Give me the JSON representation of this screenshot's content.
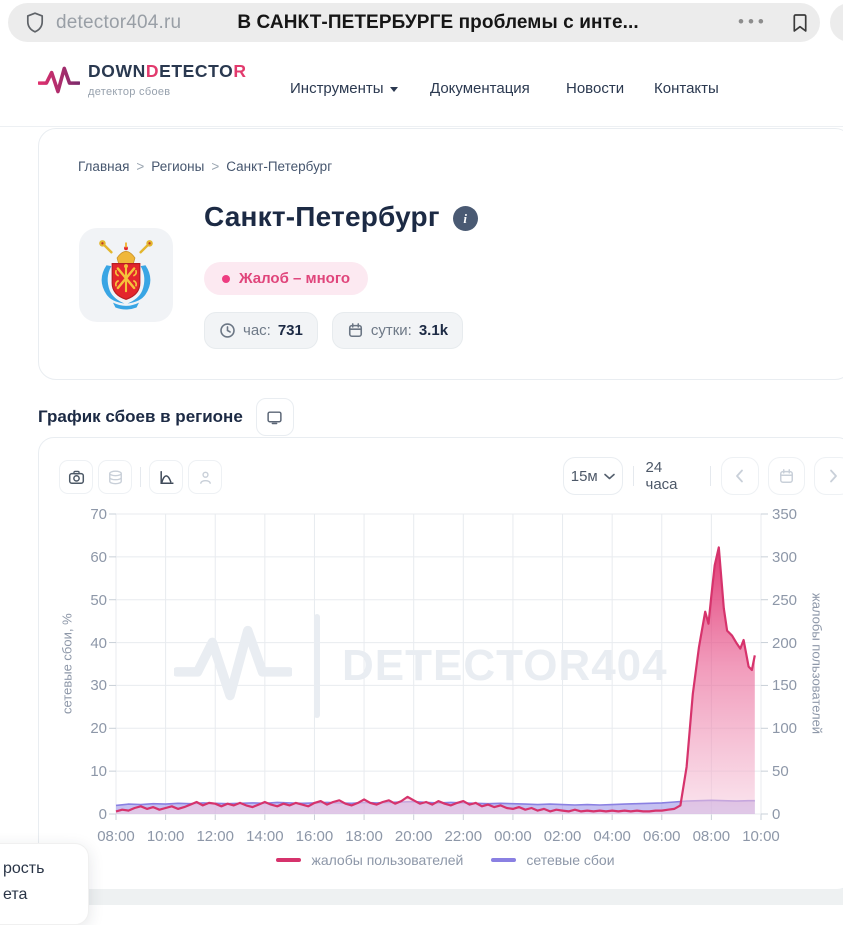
{
  "browser": {
    "url": "detector404.ru",
    "tab_title": "В САНКТ-ПЕТЕРБУРГЕ проблемы с инте...",
    "more_menu": "•••"
  },
  "header": {
    "logo": {
      "parts": [
        {
          "t": "DOWN",
          "c": "navy"
        },
        {
          "t": "D",
          "c": "pink"
        },
        {
          "t": "ETECTO",
          "c": "navy"
        },
        {
          "t": "R",
          "c": "pink"
        }
      ],
      "subtitle": "детектор сбоев"
    },
    "nav": [
      {
        "label": "Инструменты",
        "has_dropdown": true
      },
      {
        "label": "Документация",
        "has_dropdown": false
      },
      {
        "label": "Новости",
        "has_dropdown": false
      },
      {
        "label": "Контакты",
        "has_dropdown": false
      }
    ]
  },
  "breadcrumb": {
    "items": [
      "Главная",
      "Регионы",
      "Санкт-Петербург"
    ],
    "separator": ">"
  },
  "region": {
    "title": "Санкт-Петербург",
    "info_glyph": "i",
    "status_badge": "Жалоб – много",
    "stats": [
      {
        "icon": "clock-icon",
        "label": "час:",
        "value": "731"
      },
      {
        "icon": "calendar-icon",
        "label": "сутки:",
        "value": "3.1k"
      }
    ]
  },
  "chart_section": {
    "heading": "График сбоев в регионе",
    "toolbar": {
      "interval_select": "15м",
      "range_label": "24 часа"
    }
  },
  "colors": {
    "brand_navy": "#2a3950",
    "brand_pink": "#e23a6d",
    "status_pink": "#e0457b",
    "complaints_line": "#d6336c",
    "network_line": "#8a80e2"
  },
  "corner_popup": {
    "line1": "рость",
    "line2": "ета"
  },
  "chart_data": {
    "type": "area",
    "title": "График сбоев в регионе",
    "x_ticks": [
      "08:00",
      "10:00",
      "12:00",
      "14:00",
      "16:00",
      "18:00",
      "20:00",
      "22:00",
      "00:00",
      "02:00",
      "04:00",
      "06:00",
      "08:00",
      "10:00"
    ],
    "x_max_minutes": 1560,
    "left_axis": {
      "label": "сетевые сбои, %",
      "min": 0,
      "max": 70,
      "step": 10
    },
    "right_axis": {
      "label": "жалобы пользователей",
      "min": 0,
      "max": 350,
      "step": 50
    },
    "grid": true,
    "legend_position": "bottom",
    "watermark": "DETECTOR404",
    "series": [
      {
        "name": "жалобы пользователей",
        "axis": "right",
        "color": "#d6336c",
        "fill": "gradient-pink",
        "z": 1,
        "points": [
          [
            0,
            3
          ],
          [
            15,
            5
          ],
          [
            30,
            4
          ],
          [
            45,
            7
          ],
          [
            60,
            9
          ],
          [
            75,
            6
          ],
          [
            90,
            8
          ],
          [
            105,
            5
          ],
          [
            120,
            7
          ],
          [
            135,
            9
          ],
          [
            150,
            6
          ],
          [
            165,
            8
          ],
          [
            180,
            11
          ],
          [
            195,
            14
          ],
          [
            210,
            10
          ],
          [
            225,
            13
          ],
          [
            240,
            12
          ],
          [
            255,
            9
          ],
          [
            270,
            12
          ],
          [
            285,
            10
          ],
          [
            300,
            13
          ],
          [
            315,
            10
          ],
          [
            330,
            8
          ],
          [
            345,
            11
          ],
          [
            360,
            14
          ],
          [
            375,
            11
          ],
          [
            390,
            9
          ],
          [
            405,
            12
          ],
          [
            420,
            10
          ],
          [
            435,
            13
          ],
          [
            450,
            11
          ],
          [
            465,
            9
          ],
          [
            480,
            13
          ],
          [
            495,
            15
          ],
          [
            510,
            11
          ],
          [
            525,
            14
          ],
          [
            540,
            16
          ],
          [
            555,
            12
          ],
          [
            570,
            10
          ],
          [
            585,
            13
          ],
          [
            600,
            17
          ],
          [
            615,
            13
          ],
          [
            630,
            11
          ],
          [
            645,
            14
          ],
          [
            660,
            16
          ],
          [
            675,
            12
          ],
          [
            690,
            15
          ],
          [
            705,
            20
          ],
          [
            720,
            16
          ],
          [
            735,
            12
          ],
          [
            750,
            14
          ],
          [
            765,
            11
          ],
          [
            780,
            15
          ],
          [
            795,
            12
          ],
          [
            810,
            10
          ],
          [
            825,
            13
          ],
          [
            840,
            15
          ],
          [
            855,
            11
          ],
          [
            870,
            13
          ],
          [
            885,
            9
          ],
          [
            900,
            11
          ],
          [
            915,
            8
          ],
          [
            930,
            10
          ],
          [
            945,
            7
          ],
          [
            960,
            6
          ],
          [
            975,
            8
          ],
          [
            990,
            5
          ],
          [
            1005,
            7
          ],
          [
            1020,
            4
          ],
          [
            1035,
            6
          ],
          [
            1050,
            3
          ],
          [
            1065,
            5
          ],
          [
            1080,
            4
          ],
          [
            1095,
            3
          ],
          [
            1110,
            5
          ],
          [
            1125,
            3
          ],
          [
            1140,
            4
          ],
          [
            1155,
            3
          ],
          [
            1170,
            4
          ],
          [
            1185,
            3
          ],
          [
            1200,
            4
          ],
          [
            1215,
            3
          ],
          [
            1230,
            4
          ],
          [
            1245,
            3
          ],
          [
            1260,
            4
          ],
          [
            1275,
            3
          ],
          [
            1290,
            3
          ],
          [
            1305,
            4
          ],
          [
            1320,
            4
          ],
          [
            1335,
            5
          ],
          [
            1350,
            6
          ],
          [
            1365,
            10
          ],
          [
            1380,
            55
          ],
          [
            1395,
            140
          ],
          [
            1410,
            195
          ],
          [
            1425,
            236
          ],
          [
            1433,
            222
          ],
          [
            1440,
            255
          ],
          [
            1448,
            290
          ],
          [
            1458,
            311
          ],
          [
            1470,
            240
          ],
          [
            1478,
            214
          ],
          [
            1490,
            208
          ],
          [
            1500,
            200
          ],
          [
            1510,
            193
          ],
          [
            1518,
            203
          ],
          [
            1530,
            172
          ],
          [
            1538,
            168
          ],
          [
            1545,
            185
          ]
        ]
      },
      {
        "name": "сетевые сбои",
        "axis": "left",
        "color": "#8a80e2",
        "fill": "rgba(139,130,227,0.5)",
        "z": 0,
        "points": [
          [
            0,
            2.0
          ],
          [
            30,
            2.3
          ],
          [
            60,
            2.2
          ],
          [
            90,
            2.4
          ],
          [
            120,
            2.3
          ],
          [
            150,
            2.5
          ],
          [
            180,
            2.4
          ],
          [
            210,
            2.6
          ],
          [
            240,
            2.5
          ],
          [
            270,
            2.4
          ],
          [
            300,
            2.5
          ],
          [
            330,
            2.6
          ],
          [
            360,
            2.5
          ],
          [
            390,
            2.7
          ],
          [
            420,
            2.6
          ],
          [
            450,
            2.5
          ],
          [
            480,
            2.6
          ],
          [
            510,
            2.7
          ],
          [
            540,
            2.6
          ],
          [
            570,
            2.5
          ],
          [
            600,
            2.7
          ],
          [
            630,
            2.6
          ],
          [
            660,
            2.7
          ],
          [
            690,
            2.8
          ],
          [
            720,
            2.9
          ],
          [
            750,
            2.7
          ],
          [
            780,
            2.6
          ],
          [
            810,
            2.7
          ],
          [
            840,
            2.6
          ],
          [
            870,
            2.5
          ],
          [
            900,
            2.4
          ],
          [
            930,
            2.5
          ],
          [
            960,
            2.4
          ],
          [
            990,
            2.3
          ],
          [
            1020,
            2.2
          ],
          [
            1050,
            2.3
          ],
          [
            1080,
            2.2
          ],
          [
            1110,
            2.1
          ],
          [
            1140,
            2.2
          ],
          [
            1170,
            2.1
          ],
          [
            1200,
            2.2
          ],
          [
            1230,
            2.3
          ],
          [
            1260,
            2.4
          ],
          [
            1290,
            2.5
          ],
          [
            1320,
            2.6
          ],
          [
            1350,
            2.8
          ],
          [
            1380,
            3.0
          ],
          [
            1410,
            3.1
          ],
          [
            1440,
            3.2
          ],
          [
            1470,
            3.1
          ],
          [
            1500,
            3.0
          ],
          [
            1530,
            3.1
          ],
          [
            1545,
            3.1
          ]
        ]
      }
    ]
  }
}
